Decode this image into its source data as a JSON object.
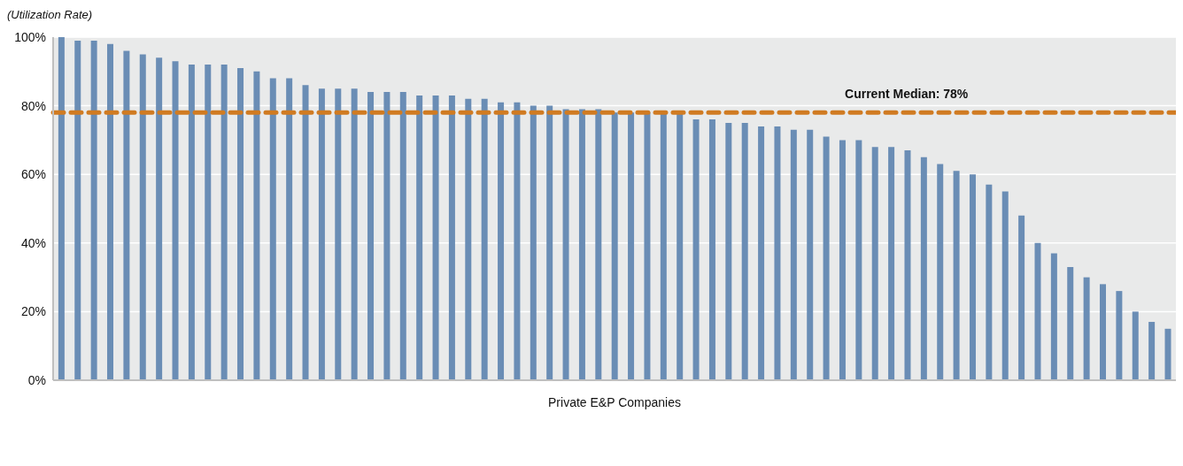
{
  "chart_data": {
    "type": "bar",
    "ylabel": "(Utilization Rate)",
    "xlabel": "Private E&P Companies",
    "categories": [
      null,
      null,
      null,
      null,
      null,
      null,
      null,
      null,
      null,
      null,
      null,
      null,
      null,
      null,
      null,
      null,
      null,
      null,
      null,
      null,
      null,
      null,
      null,
      null,
      null,
      null,
      null,
      null,
      null,
      null,
      null,
      null,
      null,
      null,
      null,
      null,
      null,
      null,
      null,
      null,
      null,
      null,
      null,
      null,
      null,
      null,
      null,
      null,
      null,
      null,
      null,
      null,
      null,
      null,
      null,
      null,
      null,
      null,
      null,
      null,
      null,
      null,
      null,
      null,
      null,
      null,
      null,
      null,
      null
    ],
    "values": [
      100,
      99,
      99,
      98,
      96,
      95,
      94,
      93,
      92,
      92,
      92,
      91,
      90,
      88,
      88,
      86,
      85,
      85,
      85,
      84,
      84,
      84,
      83,
      83,
      83,
      82,
      82,
      81,
      81,
      80,
      80,
      79,
      79,
      79,
      78,
      78,
      78,
      78,
      78,
      76,
      76,
      75,
      75,
      74,
      74,
      73,
      73,
      71,
      70,
      70,
      68,
      68,
      67,
      65,
      63,
      61,
      60,
      57,
      55,
      48,
      40,
      37,
      33,
      30,
      28,
      26,
      20,
      17,
      15
    ],
    "color": "#6a8db5",
    "ylim": [
      0,
      100
    ],
    "yticks": [
      {
        "value": 0,
        "label": "0%"
      },
      {
        "value": 20,
        "label": "20%"
      },
      {
        "value": 40,
        "label": "40%"
      },
      {
        "value": 60,
        "label": "60%"
      },
      {
        "value": 80,
        "label": "80%"
      },
      {
        "value": 100,
        "label": "100%"
      }
    ],
    "grid": "y",
    "ref_lines": [
      {
        "axis": "y",
        "value": 78,
        "label": "Current Median: 78%",
        "color": "#d07b22",
        "line_style": "dashed"
      }
    ]
  }
}
